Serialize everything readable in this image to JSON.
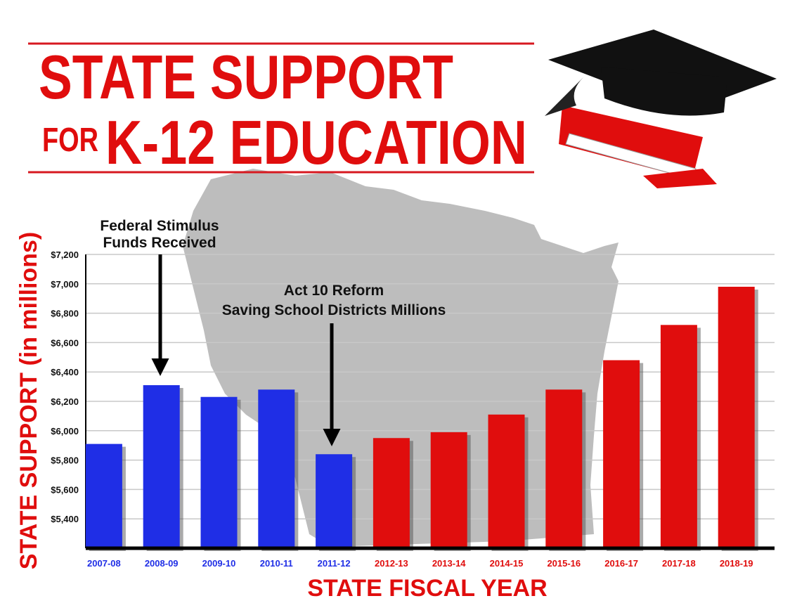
{
  "chart_data": {
    "type": "bar",
    "title_lines": [
      "STATE SUPPORT",
      "FOR",
      "K-12 EDUCATION"
    ],
    "x_label": "STATE FISCAL YEAR",
    "y_label": "STATE SUPPORT (in millions)",
    "categories": [
      "2007-08",
      "2008-09",
      "2009-10",
      "2010-11",
      "2011-12",
      "2012-13",
      "2013-14",
      "2014-15",
      "2015-16",
      "2016-17",
      "2017-18",
      "2018-19"
    ],
    "values": [
      5910,
      6310,
      6230,
      6280,
      5840,
      5950,
      5990,
      6110,
      6280,
      6480,
      6720,
      6980
    ],
    "colors": [
      "#1f2ee6",
      "#1f2ee6",
      "#1f2ee6",
      "#1f2ee6",
      "#1f2ee6",
      "#e00d0d",
      "#e00d0d",
      "#e00d0d",
      "#e00d0d",
      "#e00d0d",
      "#e00d0d",
      "#e00d0d"
    ],
    "ylim": [
      5200,
      7200
    ],
    "yticks": [
      {
        "value": 5400,
        "label": "$5,400"
      },
      {
        "value": 5600,
        "label": "$5,600"
      },
      {
        "value": 5800,
        "label": "$5,800"
      },
      {
        "value": 6000,
        "label": "$6,000"
      },
      {
        "value": 6200,
        "label": "$6,200"
      },
      {
        "value": 6400,
        "label": "$6,400"
      },
      {
        "value": 6600,
        "label": "$6,600"
      },
      {
        "value": 6800,
        "label": "$6,800"
      },
      {
        "value": 7000,
        "label": "$7,000"
      },
      {
        "value": 7200,
        "label": "$7,200"
      }
    ],
    "grid": true,
    "annotations": [
      {
        "lines": [
          "Federal Stimulus",
          "Funds Received"
        ]
      },
      {
        "lines": [
          "Act 10 Reform",
          "Saving School Districts Millions"
        ]
      }
    ]
  }
}
